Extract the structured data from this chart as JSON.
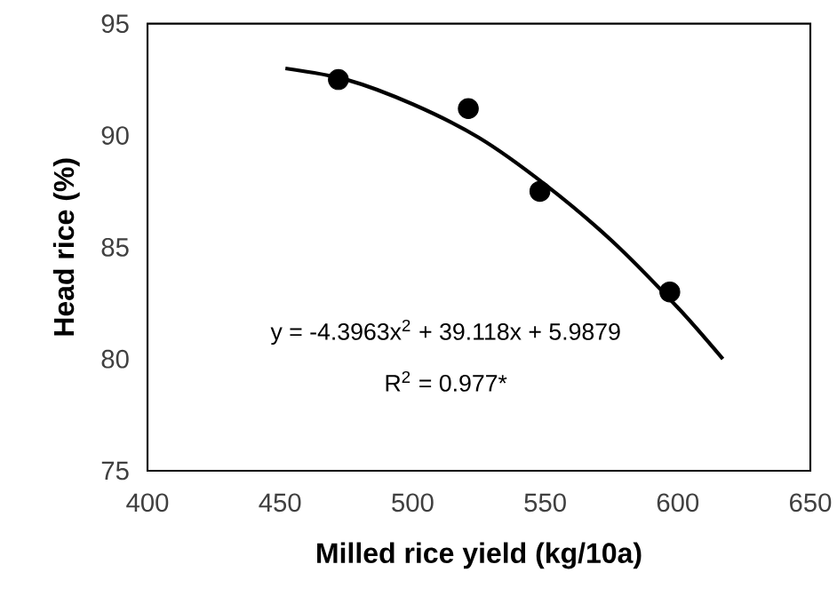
{
  "chart_data": {
    "type": "scatter",
    "xlabel": "Milled rice yield (kg/10a)",
    "ylabel": "Head rice (%)",
    "xlim": [
      400,
      650
    ],
    "xticks": [
      400,
      450,
      500,
      550,
      600,
      650
    ],
    "ylim": [
      75,
      95
    ],
    "yticks": [
      75,
      80,
      85,
      90,
      95
    ],
    "grid": false,
    "legend": false,
    "series": [
      {
        "color": "#000000",
        "marker": "circle",
        "x": [
          472,
          521,
          548,
          597
        ],
        "values": [
          92.5,
          91.2,
          87.5,
          83.0
        ]
      },
      {
        "type": "line",
        "color": "#000000",
        "marker": "none",
        "line_style": "solid",
        "x": [
          452,
          475,
          500,
          525,
          550,
          575,
          600,
          617
        ],
        "values": [
          93.0,
          92.5,
          91.4,
          89.9,
          87.8,
          85.3,
          82.3,
          80.0
        ]
      }
    ],
    "annotations": [
      "y = -4.3963x$^{2}$ + 39.118x + 5.9879",
      "R$^{2}$ = 0.977*"
    ]
  }
}
